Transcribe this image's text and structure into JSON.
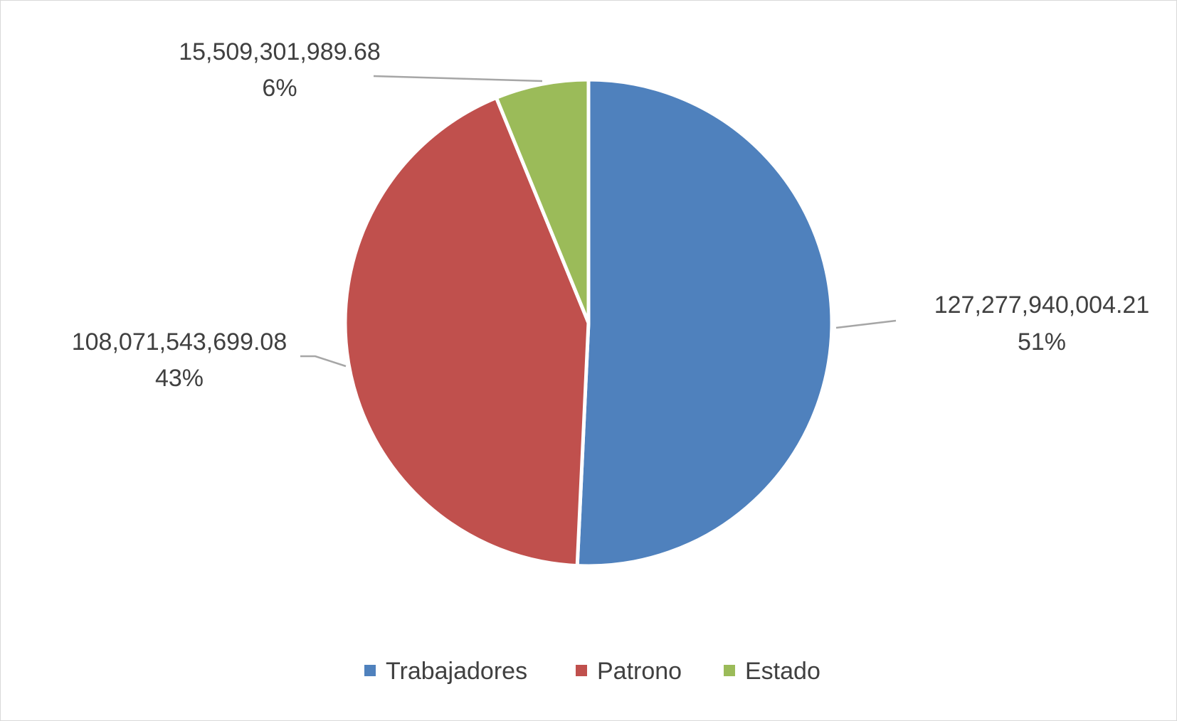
{
  "chart_data": {
    "type": "pie",
    "title": "",
    "categories": [
      "Trabajadores",
      "Patrono",
      "Estado"
    ],
    "values": [
      127277940004.21,
      108071543699.08,
      15509301989.68
    ],
    "value_labels": [
      "127,277,940,004.21",
      "108,071,543,699.08",
      "15,509,301,989.68"
    ],
    "percent_labels": [
      "51%",
      "43%",
      "6%"
    ],
    "colors": [
      "#4f81bd",
      "#c0504d",
      "#9bbb59"
    ],
    "start_angle_deg": 0,
    "direction": "clockwise",
    "legend_position": "bottom",
    "data_labels": "value and percent, outside with leader lines"
  }
}
